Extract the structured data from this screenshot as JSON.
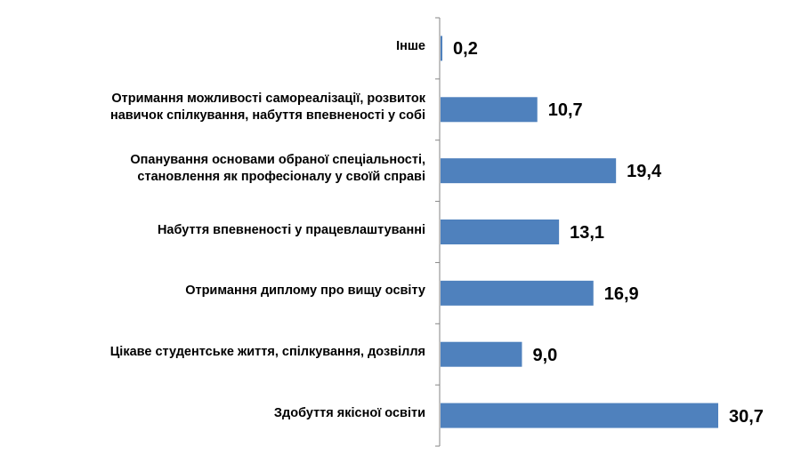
{
  "chart_data": {
    "type": "bar",
    "orientation": "horizontal",
    "categories": [
      "Інше",
      "Отримання можливості самореалізації, розвиток\nнавичок спілкування, набуття впевненості у собі",
      "Опанування основами обраної спеціальності,\nстановлення як професіоналу у своїй справі",
      "Набуття впевненості у працевлаштуванні",
      "Отримання диплому про вищу освіту",
      "Цікаве студентське життя, спілкування, дозвілля",
      "Здобуття якісної освіти"
    ],
    "values": [
      0.2,
      10.7,
      19.4,
      13.1,
      16.9,
      9.0,
      30.7
    ],
    "value_labels": [
      "0,2",
      "10,7",
      "19,4",
      "13,1",
      "16,9",
      "9,0",
      "30,7"
    ],
    "xlim": [
      0,
      35
    ],
    "bar_color": "#4F81BD",
    "axis_color": "#868686",
    "grid": false,
    "legend": false
  }
}
